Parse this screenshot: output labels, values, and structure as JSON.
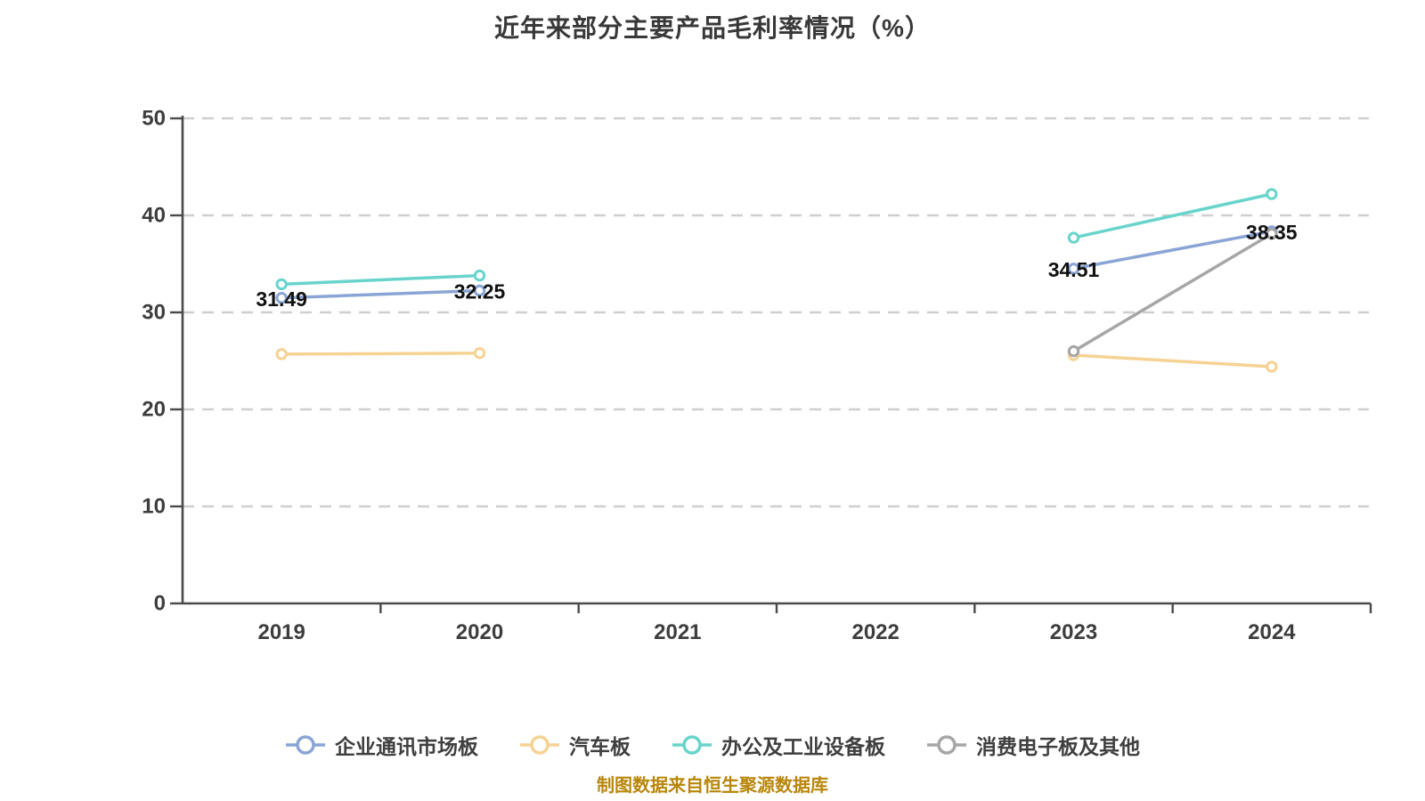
{
  "chart": {
    "title": "近年来部分主要产品毛利率情况（%）",
    "source_note": "制图数据来自恒生聚源数据库"
  },
  "chart_data": {
    "type": "line",
    "title": "近年来部分主要产品毛利率情况（%）",
    "categories": [
      "2019",
      "2020",
      "2021",
      "2022",
      "2023",
      "2024"
    ],
    "series": [
      {
        "name": "企业通讯市场板",
        "color": "#8aa5d5",
        "values": [
          31.49,
          32.25,
          null,
          null,
          34.51,
          38.35
        ],
        "labeled": true,
        "data_labels": [
          "31.49",
          "32.25",
          null,
          null,
          "34.51",
          "38.35"
        ]
      },
      {
        "name": "汽车板",
        "color": "#f6d293",
        "values": [
          25.7,
          25.8,
          null,
          null,
          25.6,
          24.4
        ],
        "labeled": false,
        "data_labels": null
      },
      {
        "name": "办公及工业设备板",
        "color": "#68d4cb",
        "values": [
          32.9,
          33.8,
          null,
          null,
          37.7,
          42.2
        ],
        "labeled": false,
        "data_labels": null
      },
      {
        "name": "消费电子板及其他",
        "color": "#a6a6a6",
        "values": [
          null,
          null,
          null,
          null,
          26.0,
          38.1
        ],
        "labeled": false,
        "data_labels": null
      }
    ],
    "ylim": [
      0,
      50
    ],
    "y_ticks": [
      0,
      10,
      20,
      30,
      40,
      50
    ],
    "xlabel": "",
    "ylabel": "",
    "grid": "dashed-horizontal",
    "legend_position": "bottom",
    "axis_color": "#4a4a4a",
    "grid_color": "#cfcfcf",
    "tick_label_color": "#3d3d3d",
    "data_label_color": "#111111",
    "marker_style": "hollow-circle-white-fill"
  }
}
